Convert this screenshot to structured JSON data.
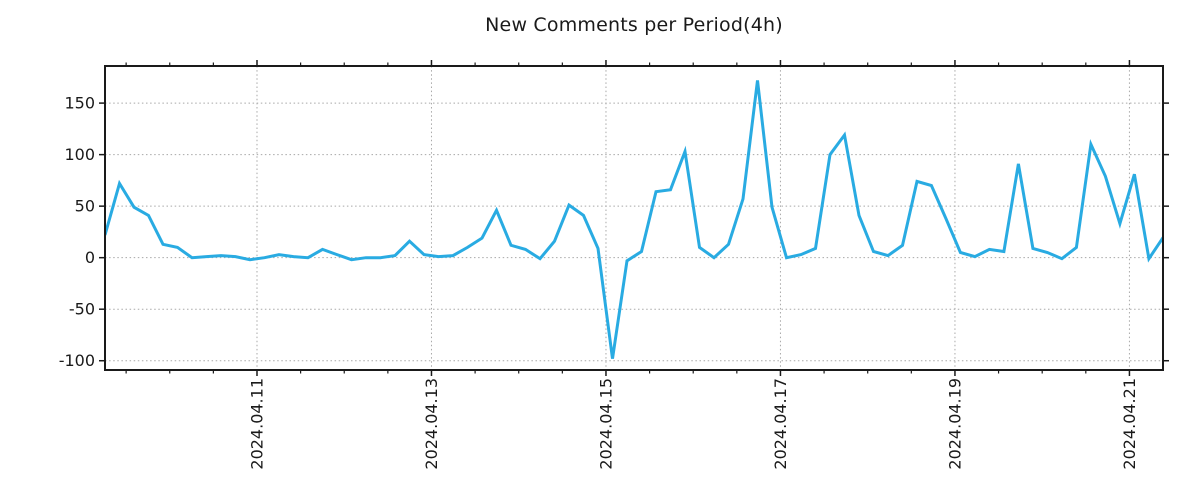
{
  "chart_data": {
    "type": "line",
    "title": "New Comments per Period(4h)",
    "period_label": "4h",
    "series": [
      {
        "name": "New Comments",
        "color": "#29abe2",
        "values": [
          22,
          72,
          49,
          41,
          13,
          10,
          0,
          1,
          2,
          1,
          -2,
          0,
          3,
          1,
          0,
          8,
          3,
          -2,
          0,
          0,
          2,
          16,
          3,
          1,
          2,
          10,
          19,
          46,
          12,
          8,
          -1,
          16,
          51,
          41,
          9,
          -98,
          -3,
          6,
          64,
          66,
          103,
          10,
          0,
          13,
          57,
          172,
          49,
          0,
          3,
          9,
          100,
          119,
          41,
          6,
          2,
          12,
          74,
          70,
          38,
          5,
          1,
          8,
          6,
          91,
          9,
          5,
          -1,
          10,
          110,
          79,
          33,
          81,
          -1,
          20
        ]
      }
    ],
    "x_ticks": [
      {
        "label": "2024.04.11",
        "index": 10.483
      },
      {
        "label": "2024.04.13",
        "index": 22.517
      },
      {
        "label": "2024.04.15",
        "index": 34.552
      },
      {
        "label": "2024.04.17",
        "index": 46.586
      },
      {
        "label": "2024.04.19",
        "index": 58.621
      },
      {
        "label": "2024.04.21",
        "index": 70.655
      }
    ],
    "x_minor_tick_step_index": 3.0086,
    "x_index_max": 72.97,
    "y_ticks": [
      150,
      100,
      50,
      0,
      -50,
      -100
    ],
    "ylim": [
      -109,
      186
    ],
    "grid": "dotted",
    "grid_color": "#a8a8a8",
    "axis_color": "#1a1a1a",
    "text_color": "#1a1a1a",
    "tick_font_size": 16,
    "legend": "none"
  }
}
